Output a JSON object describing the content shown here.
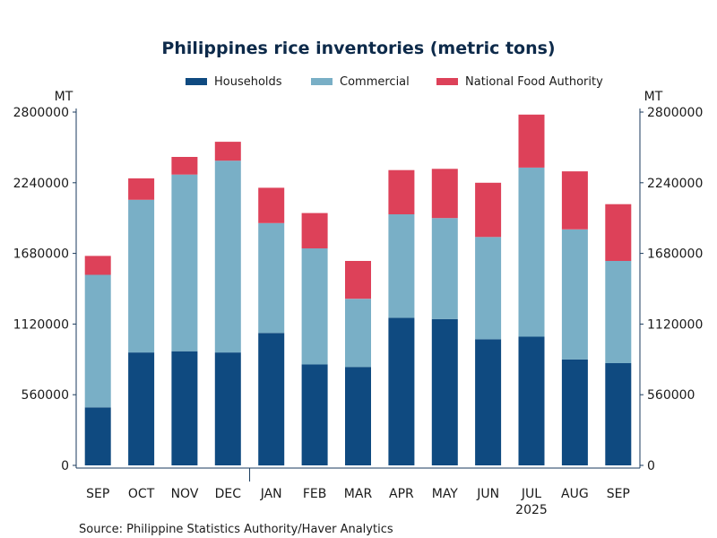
{
  "chart_data": {
    "type": "bar",
    "stacked": true,
    "title": "Philippines rice inventories (metric tons)",
    "left_unit": "MT",
    "right_unit": "MT",
    "categories": [
      "SEP",
      "OCT",
      "NOV",
      "DEC",
      "JAN",
      "FEB",
      "MAR",
      "APR",
      "MAY",
      "JUN",
      "JUL",
      "AUG",
      "SEP"
    ],
    "year_label": {
      "category_index": 10,
      "text": "2025"
    },
    "series": [
      {
        "name": "Households",
        "color": "#0f4a80",
        "values": [
          460000,
          895000,
          905000,
          895000,
          1050000,
          800000,
          780000,
          1170000,
          1160000,
          1000000,
          1020000,
          840000,
          810000
        ]
      },
      {
        "name": "Commercial",
        "color": "#79afc6",
        "values": [
          1050000,
          1210000,
          1400000,
          1520000,
          870000,
          920000,
          540000,
          820000,
          800000,
          810000,
          1340000,
          1030000,
          810000
        ]
      },
      {
        "name": "National Food Authority",
        "color": "#dd4159",
        "values": [
          150000,
          170000,
          140000,
          150000,
          280000,
          280000,
          300000,
          350000,
          390000,
          430000,
          420000,
          460000,
          450000
        ]
      }
    ],
    "ylim": [
      0,
      2800000
    ],
    "yticks": [
      0,
      560000,
      1120000,
      1680000,
      2240000,
      2800000
    ],
    "legend_position": "top",
    "grid": false
  },
  "source": "Source:  Philippine Statistics Authority/Haver Analytics"
}
